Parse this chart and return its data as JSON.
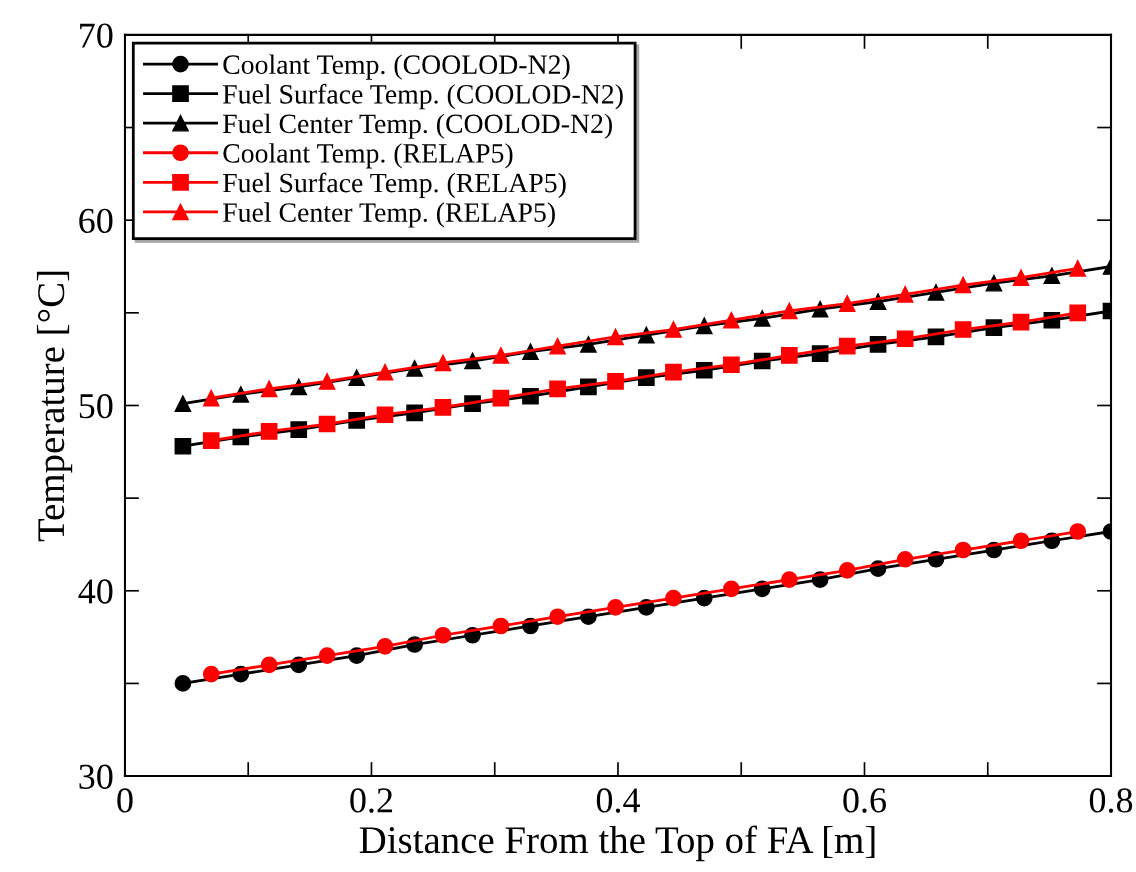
{
  "chart_data": {
    "type": "line",
    "xlabel": "Distance From the Top of FA [m]",
    "ylabel": "Temperature [°C]",
    "xlim": [
      0,
      0.8
    ],
    "ylim": [
      30,
      70
    ],
    "xticks": [
      0,
      {
        "value": 0.1,
        "label": null
      },
      0.2,
      {
        "value": 0.3,
        "label": null
      },
      0.4,
      {
        "value": 0.5,
        "label": null
      },
      0.6,
      {
        "value": 0.7,
        "label": null
      },
      0.8
    ],
    "yticks": [
      30,
      {
        "value": 35,
        "label": null
      },
      40,
      {
        "value": 45,
        "label": null
      },
      50,
      {
        "value": 55,
        "label": null
      },
      60,
      {
        "value": 65,
        "label": null
      },
      70
    ],
    "grid": false,
    "legend": "top left",
    "line_style": "solid",
    "series": [
      {
        "name": "Coolant Temp. (COOLOD-N2)",
        "color": "#000000",
        "marker": "circle",
        "x": [
          0.047,
          0.094,
          0.141,
          0.188,
          0.235,
          0.282,
          0.329,
          0.376,
          0.423,
          0.47,
          0.517,
          0.564,
          0.611,
          0.658,
          0.705,
          0.752,
          0.8
        ],
        "values": [
          35.0,
          35.5,
          36.0,
          36.5,
          37.1,
          37.6,
          38.1,
          38.6,
          39.1,
          39.6,
          40.1,
          40.6,
          41.2,
          41.7,
          42.2,
          42.7,
          43.2
        ]
      },
      {
        "name": "Fuel Surface Temp. (COOLOD-N2)",
        "color": "#000000",
        "marker": "square",
        "x": [
          0.047,
          0.094,
          0.141,
          0.188,
          0.235,
          0.282,
          0.329,
          0.376,
          0.423,
          0.47,
          0.517,
          0.564,
          0.611,
          0.658,
          0.705,
          0.752,
          0.8
        ],
        "values": [
          47.8,
          48.3,
          48.7,
          49.2,
          49.6,
          50.1,
          50.5,
          51.0,
          51.5,
          51.9,
          52.4,
          52.8,
          53.3,
          53.7,
          54.2,
          54.6,
          55.1
        ]
      },
      {
        "name": "Fuel Center Temp. (COOLOD-N2)",
        "color": "#000000",
        "marker": "triangle",
        "x": [
          0.047,
          0.094,
          0.141,
          0.188,
          0.235,
          0.282,
          0.329,
          0.376,
          0.423,
          0.47,
          0.517,
          0.564,
          0.611,
          0.658,
          0.705,
          0.752,
          0.8
        ],
        "values": [
          50.1,
          50.6,
          51.0,
          51.5,
          52.0,
          52.4,
          52.9,
          53.3,
          53.8,
          54.3,
          54.7,
          55.2,
          55.6,
          56.1,
          56.6,
          57.0,
          57.5
        ]
      },
      {
        "name": "Coolant Temp. (RELAP5)",
        "color": "#ff0000",
        "marker": "circle",
        "x": [
          0.07,
          0.117,
          0.164,
          0.211,
          0.258,
          0.305,
          0.351,
          0.398,
          0.445,
          0.492,
          0.539,
          0.586,
          0.633,
          0.68,
          0.727,
          0.773
        ],
        "values": [
          35.5,
          36.0,
          36.5,
          37.0,
          37.6,
          38.1,
          38.6,
          39.1,
          39.6,
          40.1,
          40.6,
          41.1,
          41.7,
          42.2,
          42.7,
          43.2
        ]
      },
      {
        "name": "Fuel Surface Temp. (RELAP5)",
        "color": "#ff0000",
        "marker": "square",
        "x": [
          0.07,
          0.117,
          0.164,
          0.211,
          0.258,
          0.305,
          0.351,
          0.398,
          0.445,
          0.492,
          0.539,
          0.586,
          0.633,
          0.68,
          0.727,
          0.773
        ],
        "values": [
          48.1,
          48.6,
          49.0,
          49.5,
          49.9,
          50.4,
          50.9,
          51.3,
          51.8,
          52.2,
          52.7,
          53.2,
          53.6,
          54.1,
          54.5,
          55.0
        ]
      },
      {
        "name": "Fuel Center Temp. (RELAP5)",
        "color": "#ff0000",
        "marker": "triangle",
        "x": [
          0.07,
          0.117,
          0.164,
          0.211,
          0.258,
          0.305,
          0.351,
          0.398,
          0.445,
          0.492,
          0.539,
          0.586,
          0.633,
          0.68,
          0.727,
          0.773
        ],
        "values": [
          50.4,
          50.9,
          51.3,
          51.8,
          52.3,
          52.7,
          53.2,
          53.7,
          54.1,
          54.6,
          55.1,
          55.5,
          56.0,
          56.5,
          56.9,
          57.4
        ]
      }
    ]
  }
}
